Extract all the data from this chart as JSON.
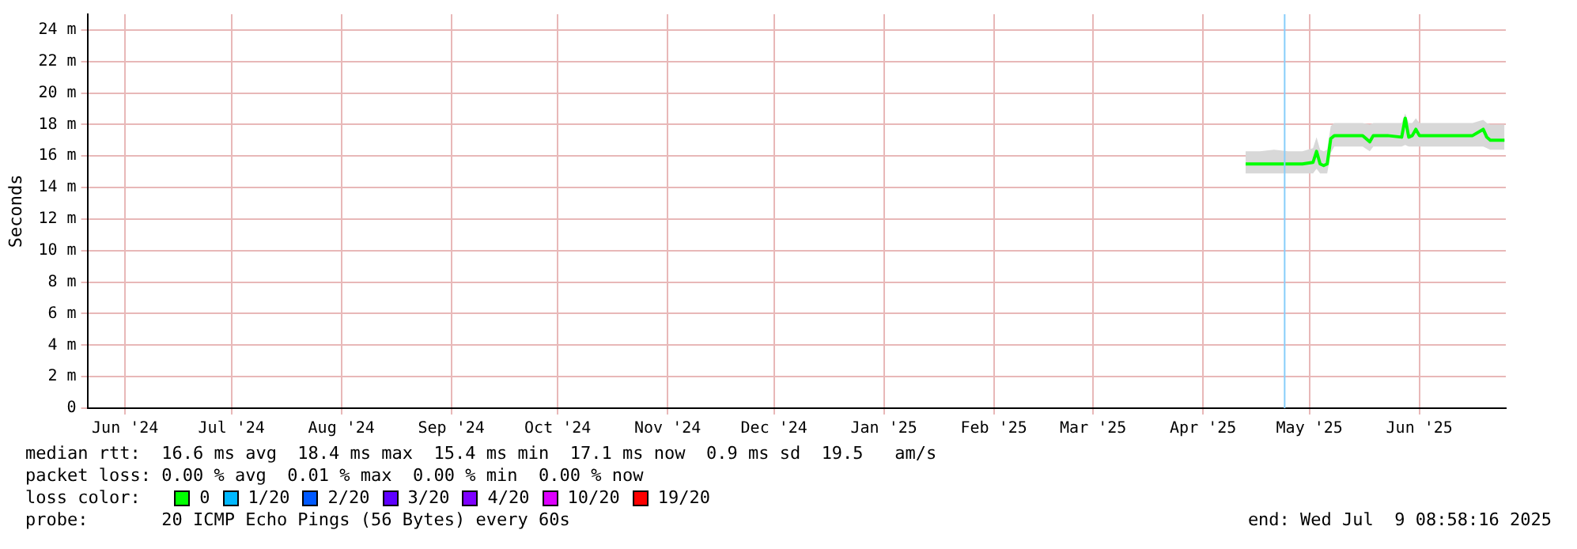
{
  "chart_data": {
    "type": "line",
    "ylabel": "Seconds",
    "legend_title": "loss color:",
    "legend": "bottom",
    "grid": true,
    "marker": "none",
    "xlim": [
      "2024-06-04T08:58",
      "2025-07-09T08:58"
    ],
    "xticks": [
      {
        "value": "2024-06-15",
        "label": "Jun '24"
      },
      {
        "value": "2024-07-15",
        "label": "Jul '24"
      },
      {
        "value": "2024-08-15",
        "label": "Aug '24"
      },
      {
        "value": "2024-09-15",
        "label": "Sep '24"
      },
      {
        "value": "2024-10-15",
        "label": "Oct '24"
      },
      {
        "value": "2024-11-15",
        "label": "Nov '24"
      },
      {
        "value": "2024-12-15",
        "label": "Dec '24"
      },
      {
        "value": "2025-01-15",
        "label": "Jan '25"
      },
      {
        "value": "2025-02-15",
        "label": "Feb '25"
      },
      {
        "value": "2025-03-15",
        "label": "Mar '25"
      },
      {
        "value": "2025-04-15",
        "label": "Apr '25"
      },
      {
        "value": "2025-05-15",
        "label": "May '25"
      },
      {
        "value": "2025-06-15",
        "label": "Jun '25"
      }
    ],
    "ylim": [
      0,
      25
    ],
    "yticks": [
      0,
      {
        "value": 2,
        "label": "2 m"
      },
      {
        "value": 4,
        "label": "4 m"
      },
      {
        "value": 6,
        "label": "6 m"
      },
      {
        "value": 8,
        "label": "8 m"
      },
      {
        "value": 10,
        "label": "10 m"
      },
      {
        "value": 12,
        "label": "12 m"
      },
      {
        "value": 14,
        "label": "14 m"
      },
      {
        "value": 16,
        "label": "16 m"
      },
      {
        "value": 18,
        "label": "18 m"
      },
      {
        "value": 20,
        "label": "20 m"
      },
      {
        "value": 22,
        "label": "22 m"
      },
      {
        "value": 24,
        "label": "24 m"
      }
    ],
    "x": [
      "2025-04-27",
      "2025-05-01",
      "2025-05-05",
      "2025-05-09",
      "2025-05-13",
      "2025-05-16",
      "2025-05-17",
      "2025-05-18",
      "2025-05-19",
      "2025-05-20",
      "2025-05-21",
      "2025-05-22",
      "2025-05-26",
      "2025-05-30",
      "2025-06-01",
      "2025-06-02",
      "2025-06-06",
      "2025-06-10",
      "2025-06-11",
      "2025-06-12",
      "2025-06-13",
      "2025-06-14",
      "2025-06-15",
      "2025-06-20",
      "2025-06-25",
      "2025-06-30",
      "2025-07-03",
      "2025-07-04",
      "2025-07-05",
      "2025-07-09"
    ],
    "series": [
      {
        "name": "0",
        "color": "#00ff00",
        "values": [
          15.5,
          15.5,
          15.5,
          15.5,
          15.5,
          15.6,
          16.3,
          15.5,
          15.4,
          15.5,
          17.1,
          17.3,
          17.3,
          17.3,
          16.9,
          17.3,
          17.3,
          17.2,
          18.4,
          17.2,
          17.3,
          17.7,
          17.3,
          17.3,
          17.3,
          17.3,
          17.7,
          17.2,
          17.0,
          17.0
        ],
        "lower": [
          14.9,
          14.9,
          14.9,
          14.9,
          14.9,
          14.9,
          15.2,
          14.9,
          14.9,
          14.9,
          16.2,
          16.6,
          16.6,
          16.6,
          16.3,
          16.6,
          16.6,
          16.6,
          16.7,
          16.6,
          16.6,
          16.6,
          16.6,
          16.6,
          16.6,
          16.6,
          16.6,
          16.5,
          16.4,
          16.4
        ],
        "upper": [
          16.3,
          16.3,
          16.4,
          16.3,
          16.3,
          16.5,
          17.2,
          16.4,
          16.3,
          16.4,
          17.9,
          18.1,
          18.1,
          18.1,
          18.0,
          18.1,
          18.1,
          18.1,
          18.7,
          18.1,
          18.1,
          18.4,
          18.1,
          18.1,
          18.1,
          18.1,
          18.3,
          18.1,
          18.0,
          18.0
        ]
      },
      {
        "name": "1/20",
        "color": "#00b8ff",
        "values": [
          null,
          null,
          null,
          null,
          null,
          null,
          null,
          null,
          null,
          null,
          null,
          null,
          null,
          null,
          null,
          null,
          null,
          null,
          null,
          null,
          null,
          null,
          null,
          null,
          null,
          null,
          null,
          null,
          null,
          null
        ]
      },
      {
        "name": "2/20",
        "color": "#0059ff",
        "values": [
          null,
          null,
          null,
          null,
          null,
          null,
          null,
          null,
          null,
          null,
          null,
          null,
          null,
          null,
          null,
          null,
          null,
          null,
          null,
          null,
          null,
          null,
          null,
          null,
          null,
          null,
          null,
          null,
          null,
          null
        ]
      },
      {
        "name": "3/20",
        "color": "#5e00ff",
        "values": [
          null,
          null,
          null,
          null,
          null,
          null,
          null,
          null,
          null,
          null,
          null,
          null,
          null,
          null,
          null,
          null,
          null,
          null,
          null,
          null,
          null,
          null,
          null,
          null,
          null,
          null,
          null,
          null,
          null,
          null
        ]
      },
      {
        "name": "4/20",
        "color": "#7e00ff",
        "values": [
          null,
          null,
          null,
          null,
          null,
          null,
          null,
          null,
          null,
          null,
          null,
          null,
          null,
          null,
          null,
          null,
          null,
          null,
          null,
          null,
          null,
          null,
          null,
          null,
          null,
          null,
          null,
          null,
          null,
          null
        ]
      },
      {
        "name": "10/20",
        "color": "#dd00ff",
        "values": [
          null,
          null,
          null,
          null,
          null,
          null,
          null,
          null,
          null,
          null,
          null,
          null,
          null,
          null,
          null,
          null,
          null,
          null,
          null,
          null,
          null,
          null,
          null,
          null,
          null,
          null,
          null,
          null,
          null,
          null
        ]
      },
      {
        "name": "19/20",
        "color": "#ff0000",
        "values": [
          null,
          null,
          null,
          null,
          null,
          null,
          null,
          null,
          null,
          null,
          null,
          null,
          null,
          null,
          null,
          null,
          null,
          null,
          null,
          null,
          null,
          null,
          null,
          null,
          null,
          null,
          null,
          null,
          null,
          null
        ]
      }
    ],
    "ref_lines": [
      {
        "axis": "x",
        "value": "2025-05-08",
        "color": "#87cefa"
      }
    ],
    "annotations": [
      "median rtt:  16.6 ms avg  18.4 ms max  15.4 ms min  17.1 ms now  0.9 ms sd  19.5   am/s",
      "packet loss: 0.00 % avg  0.01 % max  0.00 % min  0.00 % now",
      "probe:       20 ICMP Echo Pings (56 Bytes) every 60s",
      "end: Wed Jul  9 08:58:16 2025"
    ]
  }
}
